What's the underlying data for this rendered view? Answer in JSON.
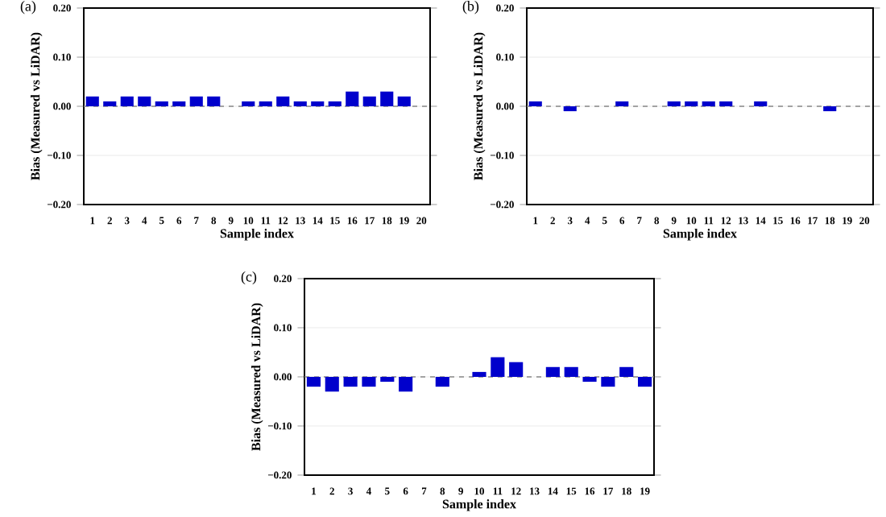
{
  "chart_data": [
    {
      "type": "bar",
      "title": "(a)",
      "xlabel": "Sample index",
      "ylabel": "Bias (Measured vs LiDAR)",
      "categories": [
        "1",
        "2",
        "3",
        "4",
        "5",
        "6",
        "7",
        "8",
        "9",
        "10",
        "11",
        "12",
        "13",
        "14",
        "15",
        "16",
        "17",
        "18",
        "19",
        "20"
      ],
      "values": [
        0.02,
        0.01,
        0.02,
        0.02,
        0.01,
        0.01,
        0.02,
        0.02,
        0,
        0.01,
        0.01,
        0.02,
        0.01,
        0.01,
        0.01,
        0.03,
        0.02,
        0.03,
        0.02,
        0
      ],
      "color": "#0000cc",
      "ylim": [
        -0.2,
        0.2
      ],
      "yticks": [
        {
          "value": -0.2,
          "label": "−0.20"
        },
        {
          "value": -0.1,
          "label": "−0.10"
        },
        {
          "value": 0,
          "label": "0.00"
        },
        {
          "value": 0.1,
          "label": "0.10"
        },
        {
          "value": 0.2,
          "label": "0.20"
        }
      ],
      "grid": "y",
      "ref_lines": [
        {
          "axis": "y",
          "value": 0,
          "color": "#888888",
          "line_style": "dashed"
        }
      ]
    },
    {
      "type": "bar",
      "title": "(b)",
      "xlabel": "Sample index",
      "ylabel": "Bias (Measured vs LiDAR)",
      "categories": [
        "1",
        "2",
        "3",
        "4",
        "5",
        "6",
        "7",
        "8",
        "9",
        "10",
        "11",
        "12",
        "13",
        "14",
        "15",
        "16",
        "17",
        "18",
        "19",
        "20"
      ],
      "values": [
        0.01,
        0,
        -0.01,
        0,
        0,
        0.01,
        0,
        0,
        0.01,
        0.01,
        0.01,
        0.01,
        0,
        0.01,
        0,
        0,
        0,
        -0.01,
        0,
        0
      ],
      "color": "#0000cc",
      "ylim": [
        -0.2,
        0.2
      ],
      "yticks": [
        {
          "value": -0.2,
          "label": "−0.20"
        },
        {
          "value": -0.1,
          "label": "−0.10"
        },
        {
          "value": 0,
          "label": "0.00"
        },
        {
          "value": 0.1,
          "label": "0.10"
        },
        {
          "value": 0.2,
          "label": "0.20"
        }
      ],
      "grid": "y",
      "ref_lines": [
        {
          "axis": "y",
          "value": 0,
          "color": "#888888",
          "line_style": "dashed"
        }
      ]
    },
    {
      "type": "bar",
      "title": "(c)",
      "xlabel": "Sample index",
      "ylabel": "Bias (Measured vs LiDAR)",
      "categories": [
        "1",
        "2",
        "3",
        "4",
        "5",
        "6",
        "7",
        "8",
        "9",
        "10",
        "11",
        "12",
        "13",
        "14",
        "15",
        "16",
        "17",
        "18",
        "19"
      ],
      "values": [
        -0.02,
        -0.03,
        -0.02,
        -0.02,
        -0.01,
        -0.03,
        0,
        -0.02,
        0,
        0.01,
        0.04,
        0.03,
        0,
        0.02,
        0.02,
        -0.01,
        -0.02,
        0.02,
        -0.02
      ],
      "color": "#0000cc",
      "ylim": [
        -0.2,
        0.2
      ],
      "yticks": [
        {
          "value": -0.2,
          "label": "−0.20"
        },
        {
          "value": -0.1,
          "label": "−0.10"
        },
        {
          "value": 0,
          "label": "0.00"
        },
        {
          "value": 0.1,
          "label": "0.10"
        },
        {
          "value": 0.2,
          "label": "0.20"
        }
      ],
      "grid": "y",
      "ref_lines": [
        {
          "axis": "y",
          "value": 0,
          "color": "#888888",
          "line_style": "dashed"
        }
      ]
    }
  ]
}
